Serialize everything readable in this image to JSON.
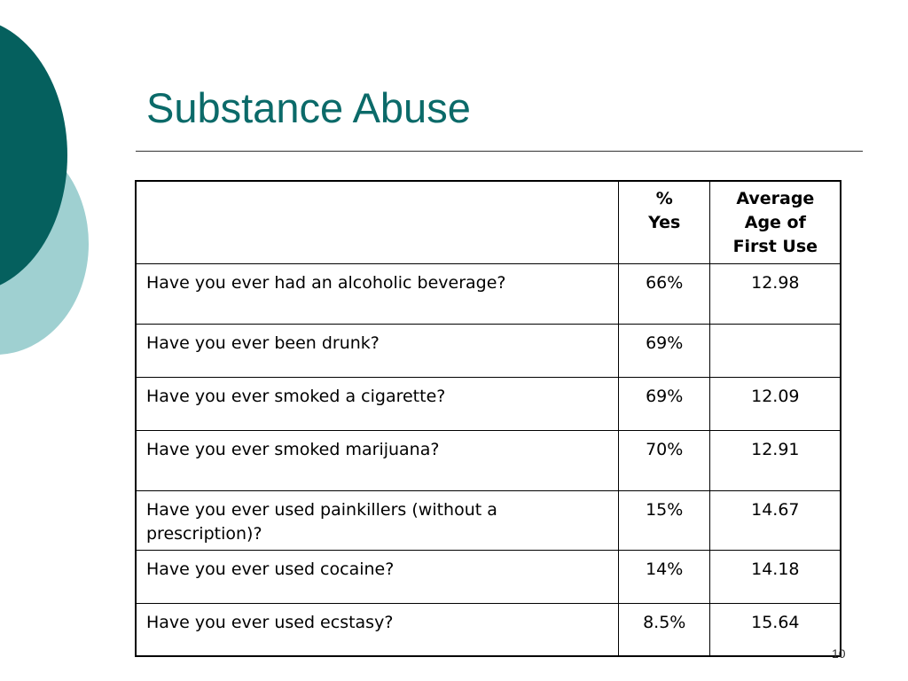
{
  "slide": {
    "title": "Substance Abuse",
    "page_number": "10"
  },
  "table": {
    "headers": {
      "question": "",
      "pct_yes_line1": "%",
      "pct_yes_line2": "Yes",
      "avg_age_line1": "Average",
      "avg_age_line2": "Age of",
      "avg_age_line3": "First Use"
    },
    "rows": [
      {
        "question": "Have you ever had an alcoholic beverage?",
        "pct_yes": "66%",
        "avg_age": "12.98"
      },
      {
        "question": "Have you ever been drunk?",
        "pct_yes": "69%",
        "avg_age": ""
      },
      {
        "question": "Have you ever smoked a cigarette?",
        "pct_yes": "69%",
        "avg_age": "12.09"
      },
      {
        "question": "Have you ever smoked marijuana?",
        "pct_yes": "70%",
        "avg_age": "12.91"
      },
      {
        "question": "Have you ever used painkillers (without a prescription)?",
        "pct_yes": "15%",
        "avg_age": "14.67"
      },
      {
        "question": "Have you ever used cocaine?",
        "pct_yes": "14%",
        "avg_age": "14.18"
      },
      {
        "question": "Have you ever used ecstasy?",
        "pct_yes": "8.5%",
        "avg_age": "15.64"
      }
    ]
  },
  "colors": {
    "title": "#0b6a69",
    "deco_dark": "#05605e",
    "deco_light": "#9fd0d1"
  }
}
